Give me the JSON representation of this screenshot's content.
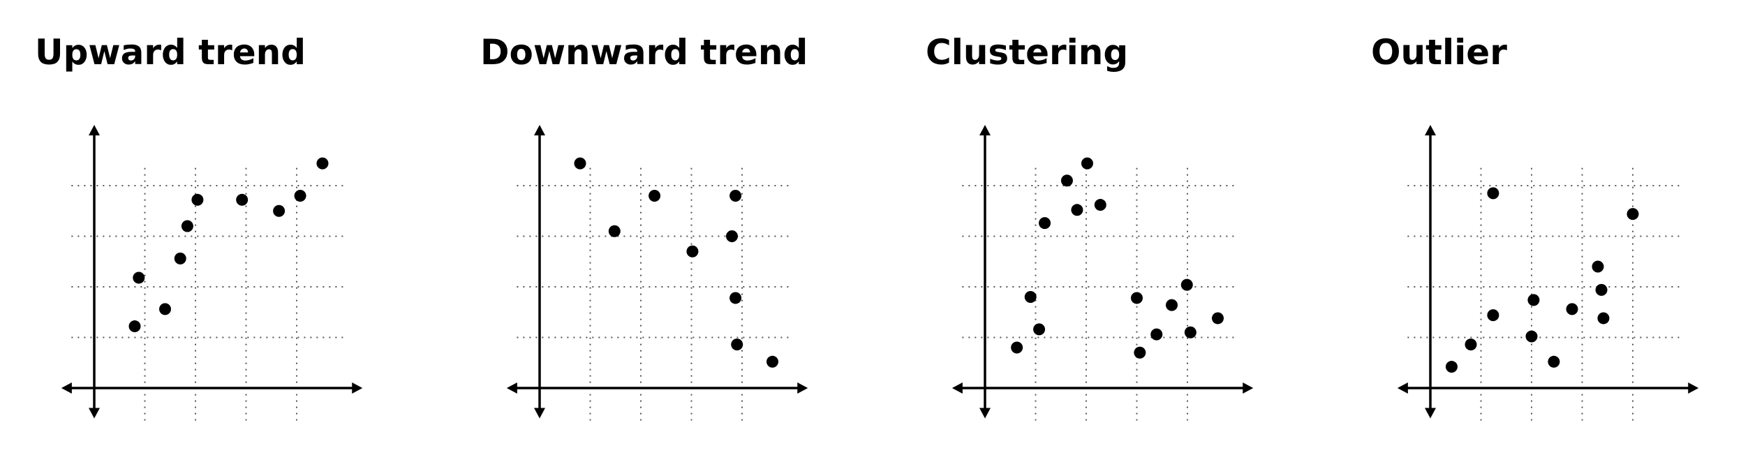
{
  "colors": {
    "ink": "#000000",
    "grid": "#555555",
    "background": "#ffffff"
  },
  "chart_data": [
    {
      "type": "scatter",
      "title": "Upward trend",
      "xlabel": "",
      "ylabel": "",
      "xlim": [
        -0.65,
        5.3
      ],
      "ylim": [
        -0.6,
        5.2
      ],
      "grid": true,
      "grid_lines": [
        1,
        2,
        3,
        4
      ],
      "points": [
        {
          "x": 0.8,
          "y": 1.22
        },
        {
          "x": 0.88,
          "y": 2.18
        },
        {
          "x": 1.4,
          "y": 1.56
        },
        {
          "x": 1.7,
          "y": 2.56
        },
        {
          "x": 1.84,
          "y": 3.2
        },
        {
          "x": 2.04,
          "y": 3.72
        },
        {
          "x": 2.92,
          "y": 3.72
        },
        {
          "x": 3.65,
          "y": 3.5
        },
        {
          "x": 4.07,
          "y": 3.8
        },
        {
          "x": 4.51,
          "y": 4.44
        }
      ]
    },
    {
      "type": "scatter",
      "title": "Downward trend",
      "xlabel": "",
      "ylabel": "",
      "xlim": [
        -0.65,
        5.3
      ],
      "ylim": [
        -0.6,
        5.2
      ],
      "grid": true,
      "grid_lines": [
        1,
        2,
        3,
        4
      ],
      "points": [
        {
          "x": 0.8,
          "y": 4.44
        },
        {
          "x": 1.48,
          "y": 3.1
        },
        {
          "x": 2.27,
          "y": 3.8
        },
        {
          "x": 3.02,
          "y": 2.7
        },
        {
          "x": 3.8,
          "y": 3.0
        },
        {
          "x": 3.87,
          "y": 1.78
        },
        {
          "x": 3.87,
          "y": 3.8
        },
        {
          "x": 3.9,
          "y": 0.86
        },
        {
          "x": 4.6,
          "y": 0.52
        }
      ]
    },
    {
      "type": "scatter",
      "title": "Clustering",
      "xlabel": "",
      "ylabel": "",
      "xlim": [
        -0.65,
        5.3
      ],
      "ylim": [
        -0.6,
        5.2
      ],
      "grid": true,
      "grid_lines": [
        1,
        2,
        3,
        4
      ],
      "points": [
        {
          "x": 0.63,
          "y": 0.8
        },
        {
          "x": 0.9,
          "y": 1.8
        },
        {
          "x": 1.07,
          "y": 1.16
        },
        {
          "x": 1.18,
          "y": 3.26
        },
        {
          "x": 1.62,
          "y": 4.1
        },
        {
          "x": 1.82,
          "y": 3.52
        },
        {
          "x": 2.02,
          "y": 4.44
        },
        {
          "x": 2.28,
          "y": 3.62
        },
        {
          "x": 3.0,
          "y": 1.78
        },
        {
          "x": 3.06,
          "y": 0.7
        },
        {
          "x": 3.39,
          "y": 1.06
        },
        {
          "x": 3.69,
          "y": 1.64
        },
        {
          "x": 3.99,
          "y": 2.04
        },
        {
          "x": 4.06,
          "y": 1.1
        },
        {
          "x": 4.6,
          "y": 1.38
        }
      ]
    },
    {
      "type": "scatter",
      "title": "Outlier",
      "xlabel": "",
      "ylabel": "",
      "xlim": [
        -0.65,
        5.3
      ],
      "ylim": [
        -0.6,
        5.2
      ],
      "grid": true,
      "grid_lines": [
        1,
        2,
        3,
        4
      ],
      "points": [
        {
          "x": 0.42,
          "y": 0.42
        },
        {
          "x": 0.8,
          "y": 0.86
        },
        {
          "x": 1.24,
          "y": 1.44
        },
        {
          "x": 1.24,
          "y": 3.85
        },
        {
          "x": 2.0,
          "y": 1.02
        },
        {
          "x": 2.04,
          "y": 1.74
        },
        {
          "x": 2.44,
          "y": 0.52
        },
        {
          "x": 2.8,
          "y": 1.56
        },
        {
          "x": 3.31,
          "y": 2.4
        },
        {
          "x": 3.38,
          "y": 1.94
        },
        {
          "x": 3.42,
          "y": 1.38
        },
        {
          "x": 4.0,
          "y": 3.44
        }
      ]
    }
  ]
}
